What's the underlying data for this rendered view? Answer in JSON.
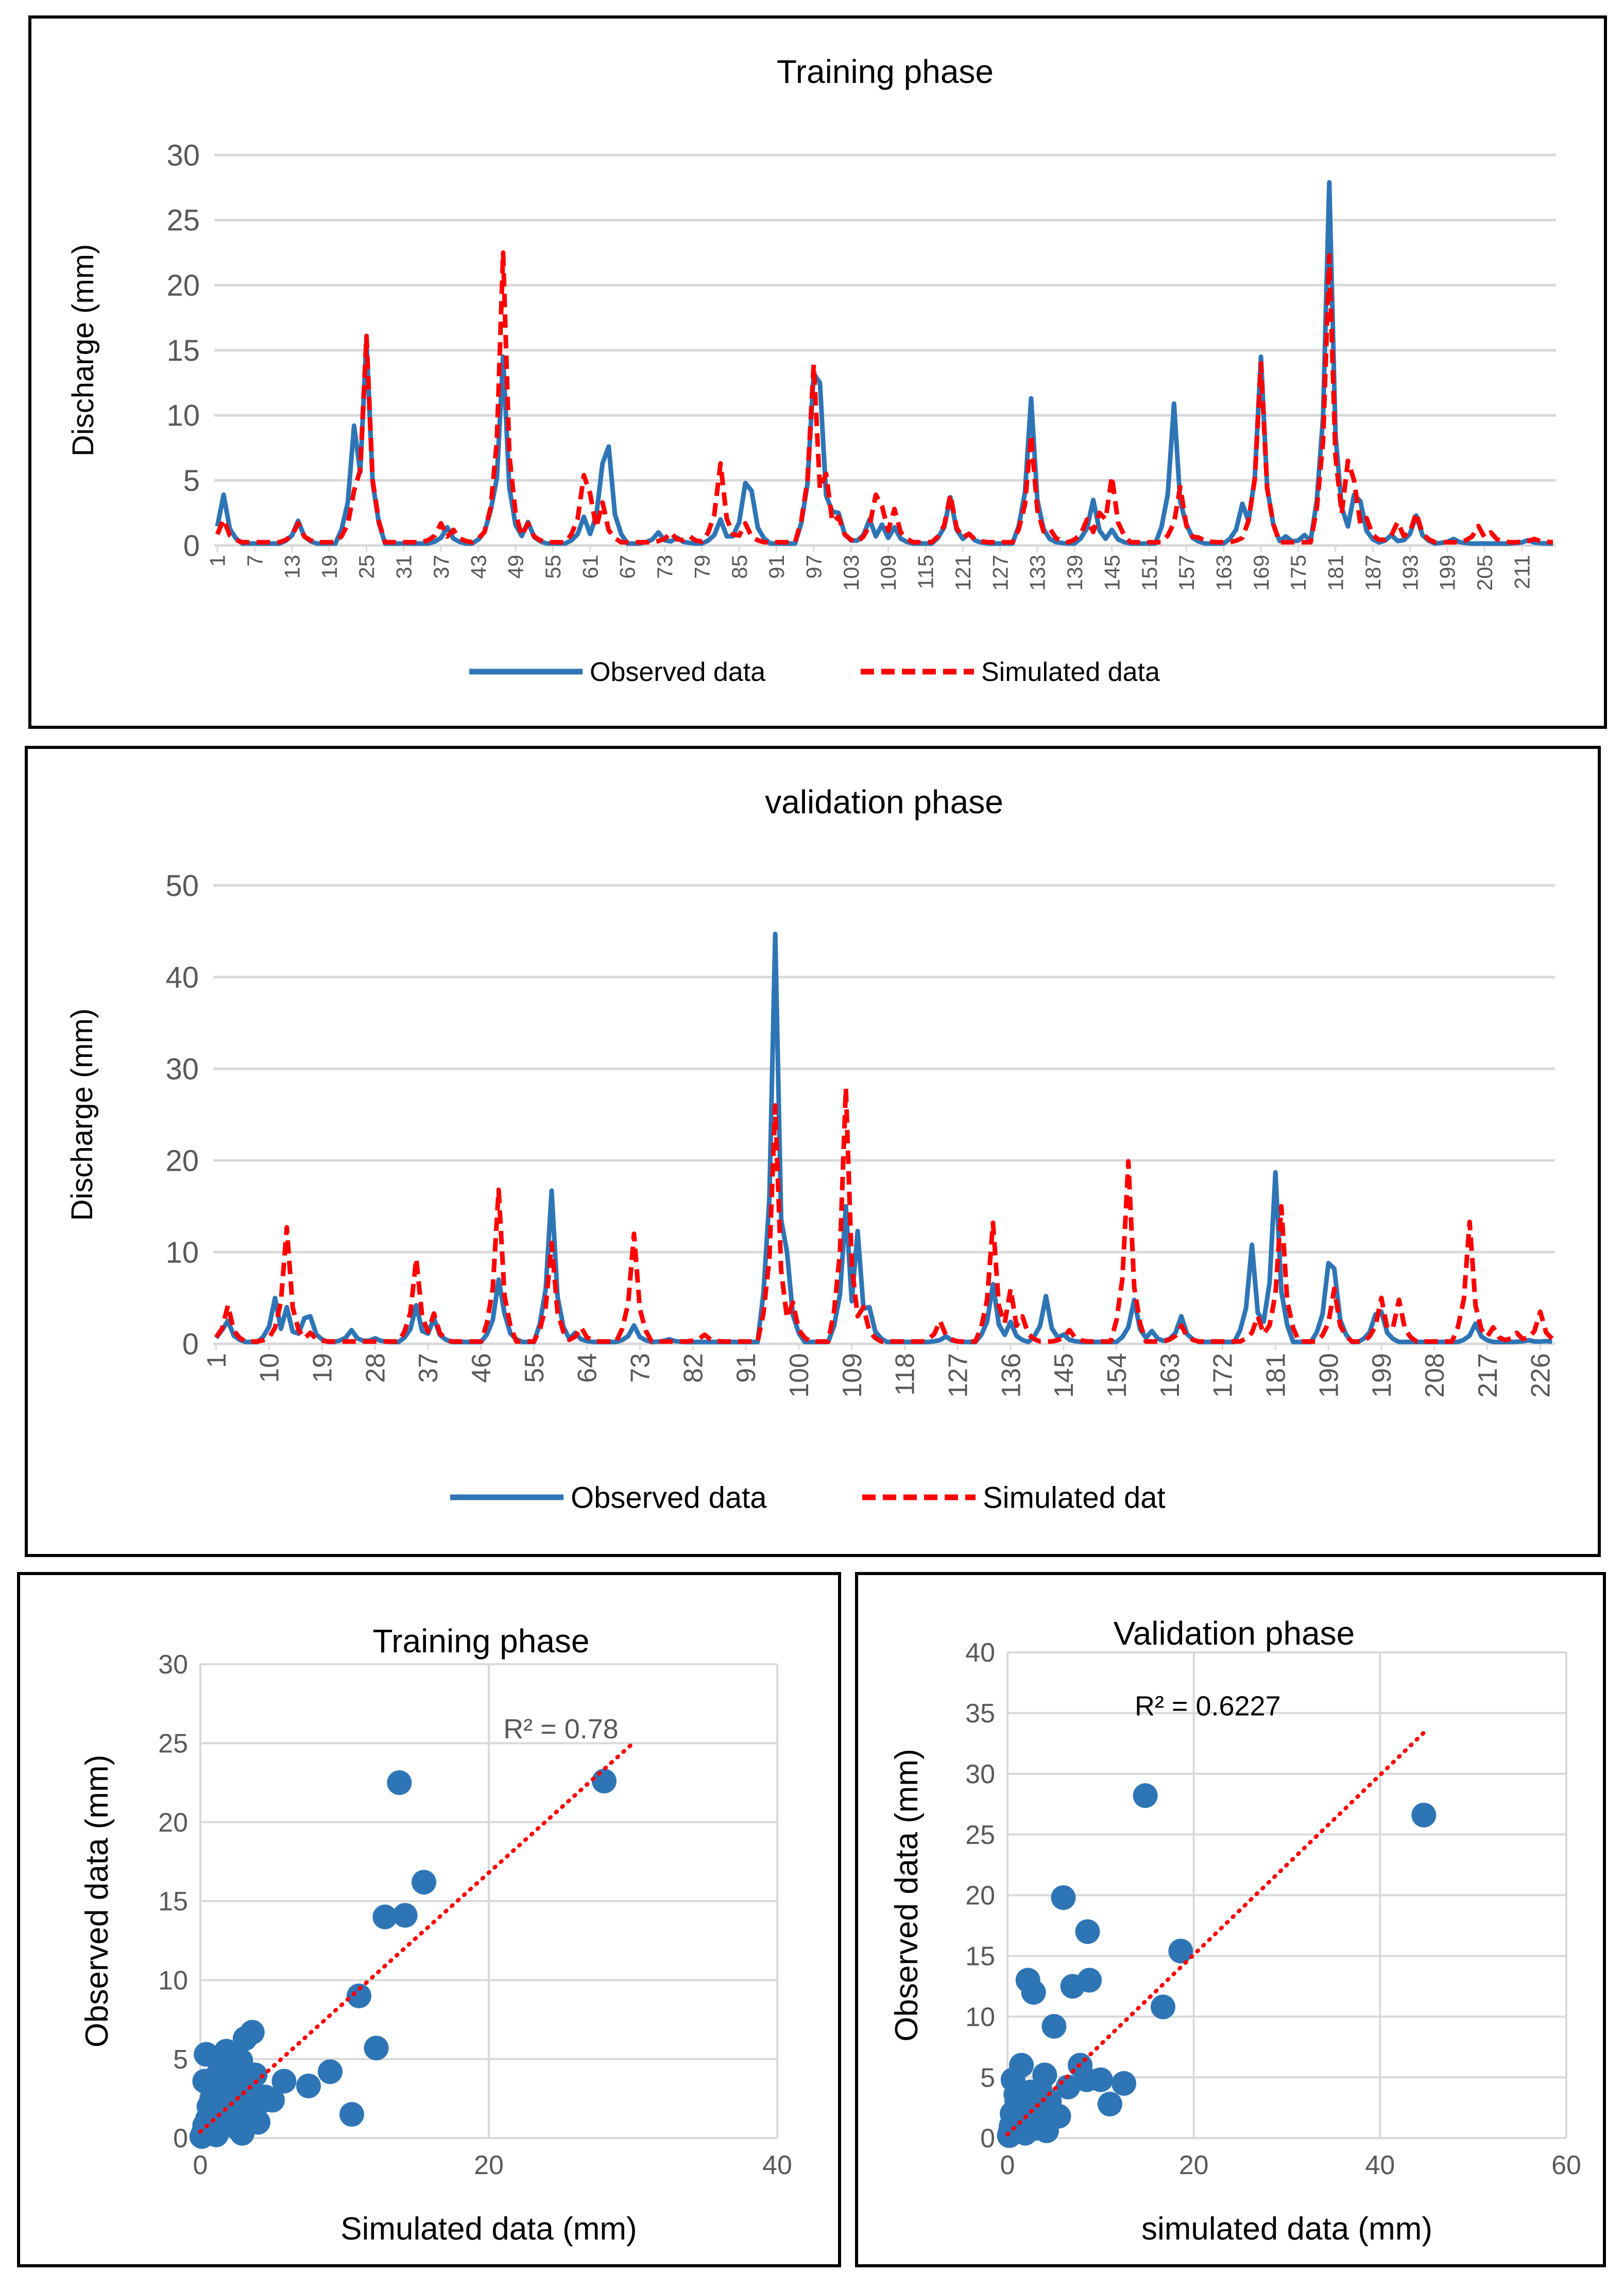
{
  "chart_data": [
    {
      "id": "training-timeseries",
      "type": "line",
      "title": "Training phase",
      "ylabel": "Discharge (mm)",
      "xlabel": "",
      "ylim": [
        0,
        30
      ],
      "yticks": [
        0,
        5,
        10,
        15,
        20,
        25,
        30
      ],
      "xtick_labels": [
        "1",
        "7",
        "13",
        "19",
        "25",
        "31",
        "37",
        "43",
        "49",
        "55",
        "61",
        "67",
        "73",
        "79",
        "85",
        "91",
        "97",
        "103",
        "109",
        "115",
        "121",
        "127",
        "133",
        "139",
        "145",
        "151",
        "157",
        "163",
        "169",
        "175",
        "181",
        "187",
        "193",
        "199",
        "205",
        "211"
      ],
      "x_count": 216,
      "series": [
        {
          "name": "Observed data",
          "style": "solid",
          "color": "#2E75B6",
          "baseline": 0.15,
          "peaks": [
            [
              2,
              3.9
            ],
            [
              14,
              1.9
            ],
            [
              23,
              9.2
            ],
            [
              25,
              15.8
            ],
            [
              38,
              1.4
            ],
            [
              45,
              2.7
            ],
            [
              47,
              14.5
            ],
            [
              51,
              1.8
            ],
            [
              60,
              2.2
            ],
            [
              63,
              6.3
            ],
            [
              64,
              7.6
            ],
            [
              72,
              1.0
            ],
            [
              75,
              0.6
            ],
            [
              82,
              2.0
            ],
            [
              86,
              4.8
            ],
            [
              87,
              4.2
            ],
            [
              97,
              13.2
            ],
            [
              98,
              12.5
            ],
            [
              100,
              2.6
            ],
            [
              101,
              2.5
            ],
            [
              106,
              2.0
            ],
            [
              108,
              1.6
            ],
            [
              110,
              1.4
            ],
            [
              119,
              3.7
            ],
            [
              122,
              0.9
            ],
            [
              132,
              11.3
            ],
            [
              135,
              0.5
            ],
            [
              142,
              3.5
            ],
            [
              145,
              1.2
            ],
            [
              155,
              10.9
            ],
            [
              157,
              1.6
            ],
            [
              166,
              3.2
            ],
            [
              169,
              14.5
            ],
            [
              173,
              0.7
            ],
            [
              176,
              0.8
            ],
            [
              180,
              27.9
            ],
            [
              182,
              2.1
            ],
            [
              184,
              3.9
            ],
            [
              185,
              3.4
            ],
            [
              190,
              0.8
            ],
            [
              194,
              2.3
            ],
            [
              200,
              0.5
            ],
            [
              212,
              0.4
            ]
          ]
        },
        {
          "name": "Simulated data",
          "style": "dashed",
          "color": "#FF0000",
          "baseline": 0.25,
          "peaks": [
            [
              2,
              2.0
            ],
            [
              14,
              1.7
            ],
            [
              23,
              4.2
            ],
            [
              25,
              16.1
            ],
            [
              37,
              1.7
            ],
            [
              39,
              1.2
            ],
            [
              45,
              2.5
            ],
            [
              47,
              22.5
            ],
            [
              51,
              1.7
            ],
            [
              60,
              5.4
            ],
            [
              61,
              4.0
            ],
            [
              63,
              3.3
            ],
            [
              74,
              1.0
            ],
            [
              77,
              0.7
            ],
            [
              82,
              6.3
            ],
            [
              86,
              1.7
            ],
            [
              97,
              13.9
            ],
            [
              99,
              5.5
            ],
            [
              101,
              2.2
            ],
            [
              107,
              3.9
            ],
            [
              108,
              3.0
            ],
            [
              110,
              2.8
            ],
            [
              119,
              3.9
            ],
            [
              122,
              0.9
            ],
            [
              132,
              8.5
            ],
            [
              135,
              1.3
            ],
            [
              141,
              2.0
            ],
            [
              143,
              2.5
            ],
            [
              145,
              5.3
            ],
            [
              156,
              4.5
            ],
            [
              159,
              0.6
            ],
            [
              167,
              1.2
            ],
            [
              169,
              14.0
            ],
            [
              180,
              22.3
            ],
            [
              183,
              6.5
            ],
            [
              184,
              5.0
            ],
            [
              186,
              2.1
            ],
            [
              191,
              1.8
            ],
            [
              194,
              2.5
            ],
            [
              204,
              1.5
            ],
            [
              206,
              1.0
            ],
            [
              213,
              0.5
            ]
          ]
        }
      ],
      "legend": "bottom"
    },
    {
      "id": "validation-timeseries",
      "type": "line",
      "title": "validation phase",
      "ylabel": "Discharge (mm)",
      "xlabel": "",
      "ylim": [
        0,
        50
      ],
      "yticks": [
        0,
        10,
        20,
        30,
        40,
        50
      ],
      "xtick_labels": [
        "1",
        "10",
        "19",
        "28",
        "37",
        "46",
        "55",
        "64",
        "73",
        "82",
        "91",
        "100",
        "109",
        "118",
        "127",
        "136",
        "145",
        "154",
        "163",
        "172",
        "181",
        "190",
        "199",
        "208",
        "217",
        "226"
      ],
      "x_count": 228,
      "series": [
        {
          "name": "Observed data",
          "style": "solid",
          "color": "#2E75B6",
          "baseline": 0.2,
          "peaks": [
            [
              2,
              1.5
            ],
            [
              3,
              2.5
            ],
            [
              11,
              5.0
            ],
            [
              13,
              4.0
            ],
            [
              16,
              2.8
            ],
            [
              17,
              3.0
            ],
            [
              24,
              1.5
            ],
            [
              28,
              0.6
            ],
            [
              35,
              4.2
            ],
            [
              38,
              2.8
            ],
            [
              49,
              7.0
            ],
            [
              50,
              3.3
            ],
            [
              58,
              16.7
            ],
            [
              62,
              1.2
            ],
            [
              72,
              2.0
            ],
            [
              78,
              0.5
            ],
            [
              96,
              44.7
            ],
            [
              98,
              10.0
            ],
            [
              108,
              15.0
            ],
            [
              110,
              12.3
            ],
            [
              112,
              4.0
            ],
            [
              125,
              0.8
            ],
            [
              133,
              6.5
            ],
            [
              136,
              2.4
            ],
            [
              142,
              5.2
            ],
            [
              145,
              1.0
            ],
            [
              157,
              4.8
            ],
            [
              160,
              1.4
            ],
            [
              165,
              3.0
            ],
            [
              177,
              10.8
            ],
            [
              181,
              18.7
            ],
            [
              190,
              8.8
            ],
            [
              191,
              8.2
            ],
            [
              198,
              3.2
            ],
            [
              199,
              3.5
            ],
            [
              215,
              2.2
            ],
            [
              224,
              0.4
            ],
            [
              227,
              0.3
            ]
          ]
        },
        {
          "name": "Simulated dat",
          "style": "dashed",
          "color": "#FF0000",
          "baseline": 0.25,
          "peaks": [
            [
              3,
              4.2
            ],
            [
              11,
              1.5
            ],
            [
              13,
              12.7
            ],
            [
              17,
              1.2
            ],
            [
              35,
              9.3
            ],
            [
              38,
              3.3
            ],
            [
              49,
              16.8
            ],
            [
              58,
              11.0
            ],
            [
              63,
              1.8
            ],
            [
              72,
              12.0
            ],
            [
              84,
              1.0
            ],
            [
              96,
              26.0
            ],
            [
              99,
              4.5
            ],
            [
              108,
              27.9
            ],
            [
              111,
              4.0
            ],
            [
              124,
              2.5
            ],
            [
              133,
              13.2
            ],
            [
              136,
              6.0
            ],
            [
              138,
              3.0
            ],
            [
              146,
              1.5
            ],
            [
              156,
              19.9
            ],
            [
              165,
              2.0
            ],
            [
              178,
              3.0
            ],
            [
              182,
              15.0
            ],
            [
              191,
              6.0
            ],
            [
              199,
              5.0
            ],
            [
              202,
              4.8
            ],
            [
              214,
              13.3
            ],
            [
              218,
              1.8
            ],
            [
              222,
              1.2
            ],
            [
              226,
              3.5
            ]
          ]
        }
      ],
      "legend": "bottom"
    },
    {
      "id": "training-scatter",
      "type": "scatter",
      "title": "Training phase",
      "xlabel": "Simulated data (mm)",
      "ylabel": "Observed data (mm)",
      "xlim": [
        0,
        40
      ],
      "ylim": [
        0,
        30
      ],
      "xticks": [
        0,
        20,
        40
      ],
      "yticks": [
        0,
        5,
        10,
        15,
        20,
        25,
        30
      ],
      "annotation": "R² = 0.78",
      "trendline": {
        "x": [
          0,
          30
        ],
        "y": [
          0.4,
          25.0
        ],
        "style": "dotted",
        "color": "#FF0000"
      },
      "point_color": "#2E75B6",
      "points": [
        [
          0.2,
          0.3
        ],
        [
          0.3,
          0.8
        ],
        [
          0.5,
          1.2
        ],
        [
          0.6,
          2.0
        ],
        [
          0.8,
          2.5
        ],
        [
          0.4,
          5.3
        ],
        [
          0.9,
          1.6
        ],
        [
          1.0,
          3.0
        ],
        [
          1.2,
          4.0
        ],
        [
          1.3,
          2.2
        ],
        [
          1.5,
          1.0
        ],
        [
          1.6,
          3.5
        ],
        [
          1.8,
          5.5
        ],
        [
          2.0,
          2.8
        ],
        [
          2.2,
          4.6
        ],
        [
          2.3,
          1.8
        ],
        [
          2.5,
          3.2
        ],
        [
          2.6,
          0.6
        ],
        [
          2.8,
          4.9
        ],
        [
          3.0,
          2.0
        ],
        [
          3.1,
          6.3
        ],
        [
          3.3,
          1.3
        ],
        [
          3.5,
          3.8
        ],
        [
          3.6,
          6.7
        ],
        [
          3.8,
          4.0
        ],
        [
          4.0,
          1.0
        ],
        [
          4.2,
          2.3
        ],
        [
          4.5,
          2.6
        ],
        [
          5.0,
          2.4
        ],
        [
          5.8,
          3.6
        ],
        [
          7.5,
          3.3
        ],
        [
          9.0,
          4.2
        ],
        [
          10.5,
          1.5
        ],
        [
          11.0,
          9.0
        ],
        [
          12.2,
          5.7
        ],
        [
          12.8,
          14.0
        ],
        [
          14.2,
          14.1
        ],
        [
          13.8,
          22.5
        ],
        [
          15.5,
          16.2
        ],
        [
          28.0,
          22.6
        ],
        [
          0.1,
          0.1
        ],
        [
          0.7,
          0.4
        ],
        [
          1.1,
          0.2
        ],
        [
          1.4,
          1.4
        ],
        [
          1.9,
          0.9
        ],
        [
          2.4,
          1.5
        ],
        [
          0.3,
          3.6
        ],
        [
          2.9,
          0.3
        ],
        [
          1.7,
          4.4
        ],
        [
          3.4,
          2.9
        ]
      ]
    },
    {
      "id": "validation-scatter",
      "type": "scatter",
      "title": "Validation phase",
      "xlabel": "simulated data (mm)",
      "ylabel": "Observed data (mm)",
      "xlim": [
        0,
        60
      ],
      "ylim": [
        0,
        40
      ],
      "xticks": [
        0,
        20,
        40,
        60
      ],
      "yticks": [
        0,
        5,
        10,
        15,
        20,
        25,
        30,
        35,
        40
      ],
      "annotation": "R² = 0.6227",
      "trendline": {
        "x": [
          0,
          45
        ],
        "y": [
          0.3,
          33.6
        ],
        "style": "dotted",
        "color": "#FF0000"
      },
      "point_color": "#2E75B6",
      "points": [
        [
          0.3,
          0.5
        ],
        [
          0.5,
          2.0
        ],
        [
          0.6,
          4.8
        ],
        [
          0.8,
          1.2
        ],
        [
          1.0,
          3.0
        ],
        [
          1.2,
          0.8
        ],
        [
          1.5,
          6.0
        ],
        [
          1.8,
          2.5
        ],
        [
          2.2,
          13.0
        ],
        [
          2.5,
          3.8
        ],
        [
          2.8,
          12.0
        ],
        [
          3.0,
          0.8
        ],
        [
          3.5,
          4.0
        ],
        [
          3.8,
          2.2
        ],
        [
          4.0,
          5.2
        ],
        [
          4.5,
          3.0
        ],
        [
          5.0,
          9.2
        ],
        [
          5.5,
          1.8
        ],
        [
          6.0,
          19.8
        ],
        [
          6.5,
          4.2
        ],
        [
          7.0,
          12.5
        ],
        [
          7.8,
          6.0
        ],
        [
          8.5,
          4.8
        ],
        [
          8.6,
          17.0
        ],
        [
          8.8,
          13.0
        ],
        [
          10.0,
          4.8
        ],
        [
          11.0,
          2.8
        ],
        [
          12.5,
          4.5
        ],
        [
          14.8,
          28.2
        ],
        [
          16.7,
          10.8
        ],
        [
          18.6,
          15.4
        ],
        [
          44.7,
          26.6
        ],
        [
          0.2,
          0.2
        ],
        [
          0.4,
          1.0
        ],
        [
          1.1,
          1.8
        ],
        [
          1.9,
          0.4
        ],
        [
          2.6,
          2.9
        ],
        [
          3.2,
          1.4
        ],
        [
          4.2,
          0.6
        ],
        [
          0.9,
          3.6
        ]
      ]
    }
  ]
}
